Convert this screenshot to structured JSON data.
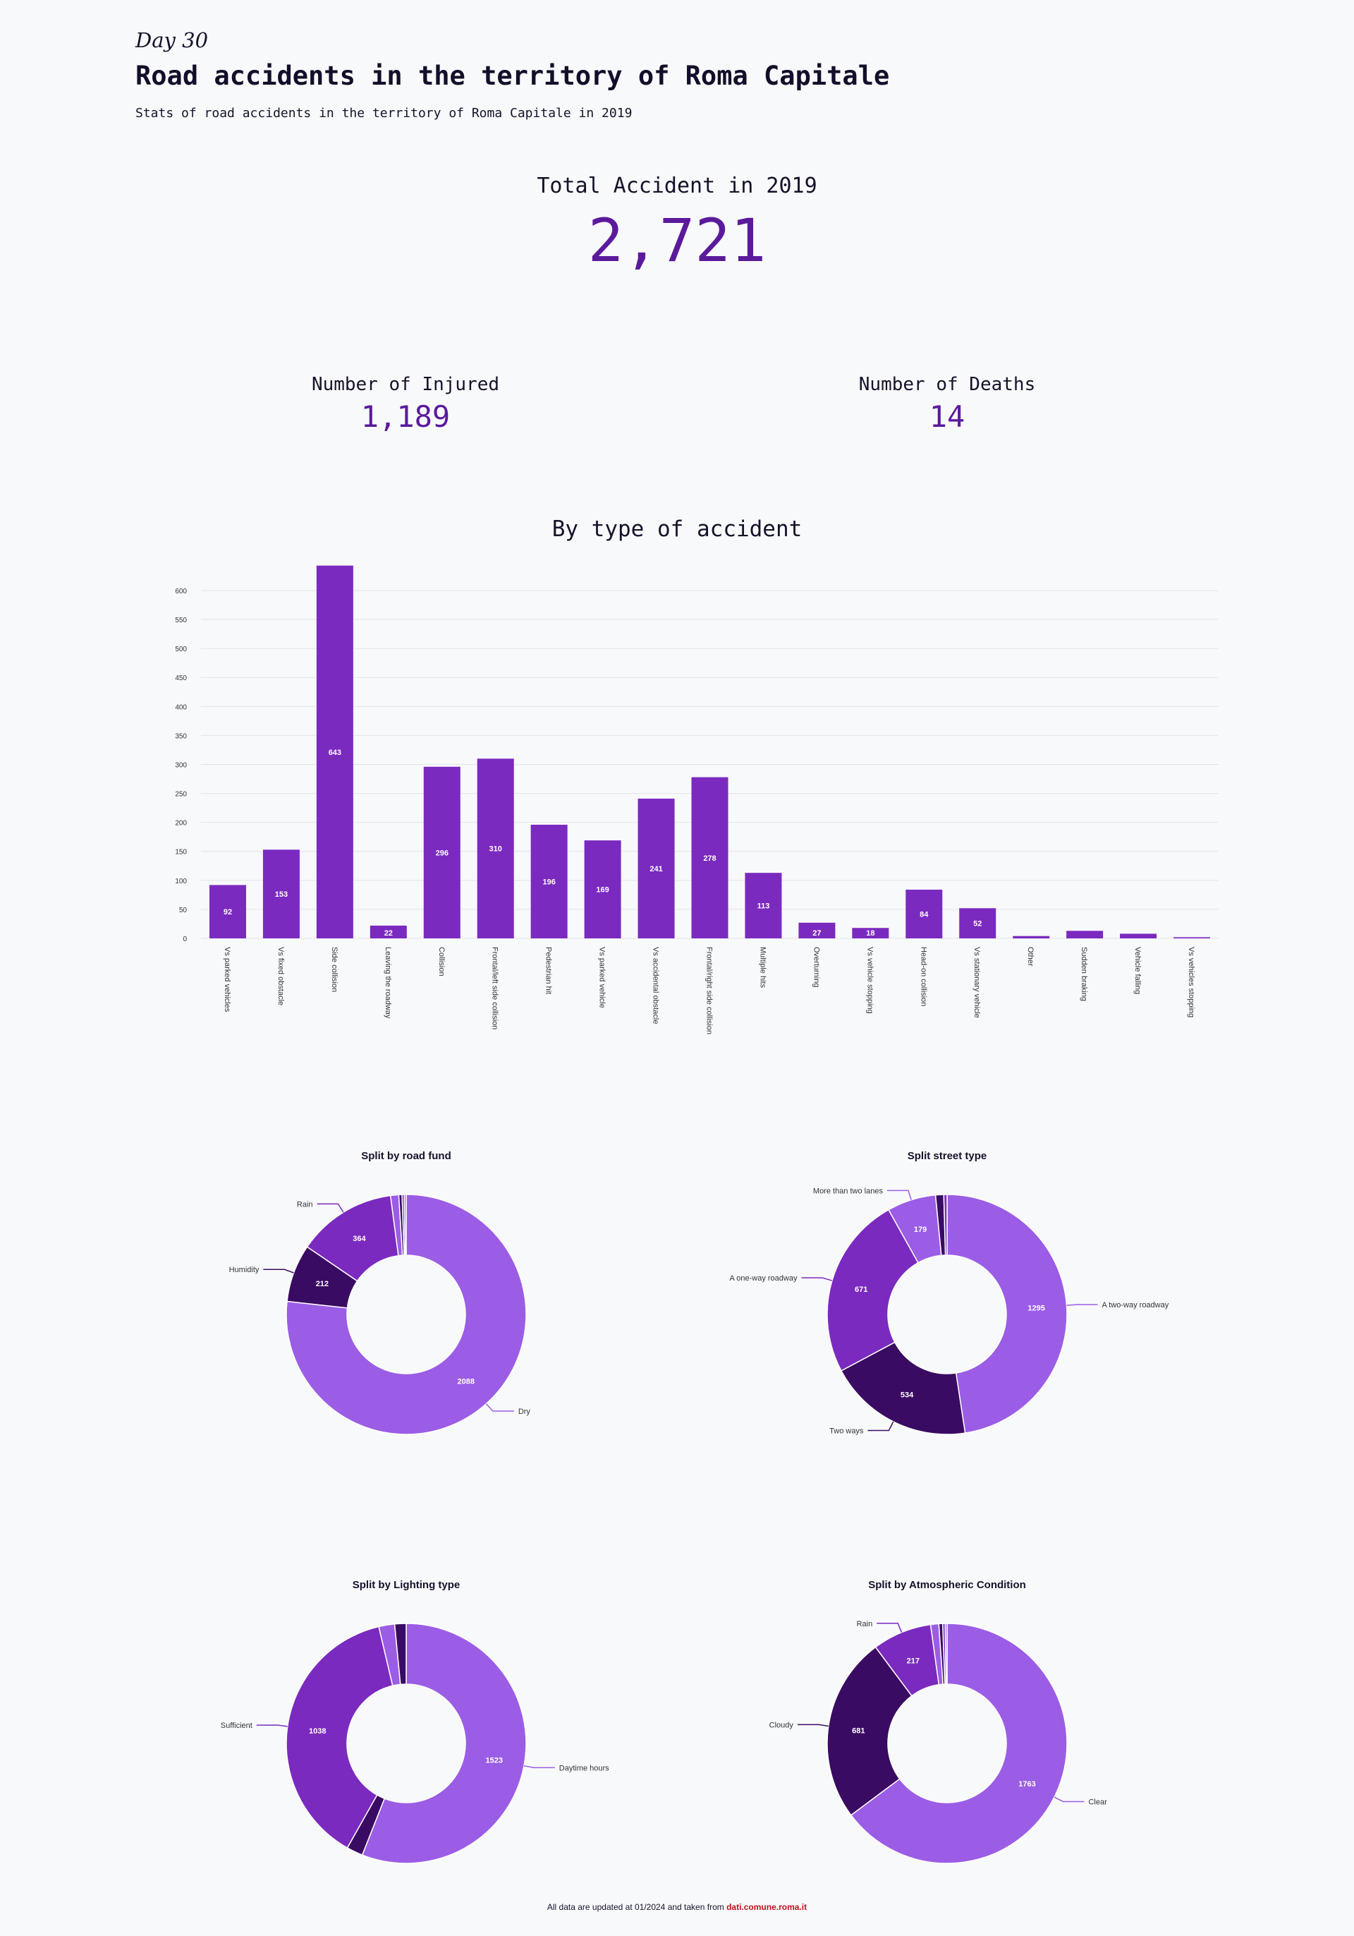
{
  "header": {
    "day": "Day 30",
    "title": "Road accidents in the territory of Roma Capitale",
    "subtitle": "Stats of road accidents in the territory of Roma Capitale in 2019"
  },
  "kpis": {
    "total": {
      "label": "Total Accident in 2019",
      "value": "2,721"
    },
    "injured": {
      "label": "Number of Injured",
      "value": "1,189"
    },
    "deaths": {
      "label": "Number of Deaths",
      "value": "14"
    }
  },
  "footer": {
    "text": "All data are updated at 01/2024 and taken from ",
    "source": "dati.comune.roma.it"
  },
  "colors": {
    "bar": "#7b2abf",
    "light": "#9b5de5",
    "mid": "#7b2abf",
    "dark": "#3a0b63",
    "accent": "#5b1a9c"
  },
  "chart_data": [
    {
      "type": "bar",
      "title": "By type of accident",
      "categories": [
        "Vs parked vehicles",
        "Vs fixed obstacle",
        "Side collision",
        "Leaving the roadway",
        "Collision",
        "Frontal/left side collision",
        "Pedestrian hit",
        "Vs parked vehicle",
        "Vs accidental obstacle",
        "Frontal/right side collision",
        "Multiple hits",
        "Overturning",
        "Vs vehicle stopping",
        "Head-on collision",
        "Vs stationary vehicle",
        "Other",
        "Sudden braking",
        "Vehicle falling",
        "Vs vehicles stopping"
      ],
      "values": [
        92,
        153,
        643,
        22,
        296,
        310,
        196,
        169,
        241,
        278,
        113,
        27,
        18,
        84,
        52,
        4,
        13,
        8,
        2
      ],
      "data_labels": [
        "92",
        "153",
        "643",
        "22",
        "296",
        "310",
        "196",
        "169",
        "241",
        "278",
        "113",
        "27",
        "18",
        "84",
        "52",
        "",
        "",
        "",
        ""
      ],
      "yticks": [
        0,
        50,
        100,
        150,
        200,
        250,
        300,
        350,
        400,
        450,
        500,
        550,
        600
      ],
      "ylim": [
        0,
        645
      ],
      "grid": true
    },
    {
      "type": "pie",
      "title": "Split by road fund",
      "slices": [
        {
          "label": "Dry",
          "value": 2088,
          "color": "#9b5de5"
        },
        {
          "label": "Humidity",
          "value": 212,
          "color": "#3a0b63"
        },
        {
          "label": "Rain",
          "value": 364,
          "color": "#7b2abf"
        },
        {
          "label": "",
          "value": 30,
          "color": "#9b5de5"
        },
        {
          "label": "",
          "value": 12,
          "color": "#3a0b63"
        },
        {
          "label": "",
          "value": 8,
          "color": "#7b2abf"
        },
        {
          "label": "",
          "value": 7,
          "color": "#9b5de5"
        }
      ]
    },
    {
      "type": "pie",
      "title": "Split street type",
      "slices": [
        {
          "label": "A two-way roadway",
          "value": 1295,
          "color": "#9b5de5"
        },
        {
          "label": "Two ways",
          "value": 534,
          "color": "#3a0b63"
        },
        {
          "label": "A one-way roadway",
          "value": 671,
          "color": "#7b2abf"
        },
        {
          "label": "More than two lanes",
          "value": 179,
          "color": "#9b5de5"
        },
        {
          "label": "",
          "value": 30,
          "color": "#3a0b63"
        },
        {
          "label": "",
          "value": 12,
          "color": "#7b2abf"
        }
      ]
    },
    {
      "type": "pie",
      "title": "Split by Lighting type",
      "slices": [
        {
          "label": "Daytime hours",
          "value": 1523,
          "color": "#9b5de5"
        },
        {
          "label": "",
          "value": 60,
          "color": "#3a0b63"
        },
        {
          "label": "Sufficient",
          "value": 1038,
          "color": "#7b2abf"
        },
        {
          "label": "",
          "value": 58,
          "color": "#9b5de5"
        },
        {
          "label": "",
          "value": 42,
          "color": "#3a0b63"
        }
      ]
    },
    {
      "type": "pie",
      "title": "Split by Atmospheric Condition",
      "slices": [
        {
          "label": "Clear",
          "value": 1763,
          "color": "#9b5de5"
        },
        {
          "label": "Cloudy",
          "value": 681,
          "color": "#3a0b63"
        },
        {
          "label": "Rain",
          "value": 217,
          "color": "#7b2abf"
        },
        {
          "label": "",
          "value": 30,
          "color": "#9b5de5"
        },
        {
          "label": "",
          "value": 14,
          "color": "#3a0b63"
        },
        {
          "label": "",
          "value": 9,
          "color": "#7b2abf"
        },
        {
          "label": "",
          "value": 7,
          "color": "#9b5de5"
        }
      ]
    }
  ]
}
